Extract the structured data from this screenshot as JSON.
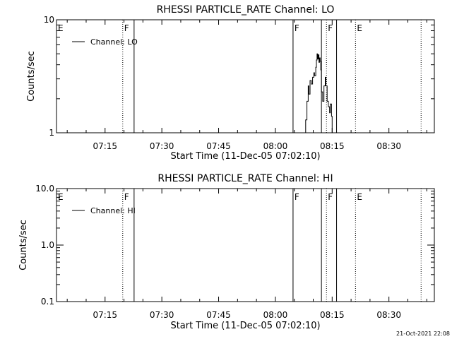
{
  "footer_timestamp": "21-Oct-2021 22:08",
  "chart_data": [
    {
      "type": "line",
      "title": "RHESSI PARTICLE_RATE Channel: LO",
      "xlabel": "Start Time (11-Dec-05 07:02:10)",
      "ylabel": "Counts/sec",
      "yscale": "log",
      "ylim": [
        1,
        10
      ],
      "xlim": [
        "07:02:10",
        "08:42:00"
      ],
      "x_ticks": [
        "07:15",
        "07:30",
        "07:45",
        "08:00",
        "08:15",
        "08:30"
      ],
      "y_ticks": [
        "1",
        "10"
      ],
      "legend": {
        "entries": [
          "Channel: LO"
        ],
        "placement": "top-left"
      },
      "grid": false,
      "markers": [
        {
          "label": "E",
          "time": "07:02:10",
          "style": "dotted"
        },
        {
          "label": "F",
          "time": "07:19:40",
          "style": "dotted"
        },
        {
          "label": "",
          "time": "07:22:40",
          "style": "solid"
        },
        {
          "label": "F",
          "time": "08:04:40",
          "style": "solid"
        },
        {
          "label": "",
          "time": "08:12:10",
          "style": "solid"
        },
        {
          "label": "F",
          "time": "08:13:30",
          "style": "dotted"
        },
        {
          "label": "",
          "time": "08:16:10",
          "style": "solid"
        },
        {
          "label": "E",
          "time": "08:21:10",
          "style": "dotted"
        },
        {
          "label": "",
          "time": "08:38:30",
          "style": "dotted"
        }
      ],
      "series": [
        {
          "name": "Channel: LO",
          "points": [
            [
              "08:07:40",
              1.0
            ],
            [
              "08:08:00",
              1.3
            ],
            [
              "08:08:20",
              1.9
            ],
            [
              "08:08:40",
              2.6
            ],
            [
              "08:08:50",
              2.2
            ],
            [
              "08:09:10",
              2.9
            ],
            [
              "08:09:30",
              2.7
            ],
            [
              "08:09:50",
              3.1
            ],
            [
              "08:10:10",
              3.4
            ],
            [
              "08:10:20",
              3.2
            ],
            [
              "08:10:40",
              3.8
            ],
            [
              "08:10:50",
              4.4
            ],
            [
              "08:11:00",
              5.0
            ],
            [
              "08:11:10",
              4.5
            ],
            [
              "08:11:20",
              4.9
            ],
            [
              "08:11:30",
              4.2
            ],
            [
              "08:11:40",
              4.6
            ],
            [
              "08:11:50",
              4.3
            ],
            [
              "08:12:00",
              3.6
            ],
            [
              "08:12:10",
              2.3
            ],
            [
              "08:12:30",
              1.9
            ],
            [
              "08:12:50",
              2.6
            ],
            [
              "08:13:10",
              3.1
            ],
            [
              "08:13:20",
              2.6
            ],
            [
              "08:13:40",
              1.9
            ],
            [
              "08:14:00",
              1.7
            ],
            [
              "08:14:20",
              1.5
            ],
            [
              "08:14:30",
              1.8
            ],
            [
              "08:14:50",
              1.4
            ],
            [
              "08:15:00",
              1.0
            ]
          ]
        }
      ]
    },
    {
      "type": "line",
      "title": "RHESSI PARTICLE_RATE Channel: HI",
      "xlabel": "Start Time (11-Dec-05 07:02:10)",
      "ylabel": "Counts/sec",
      "yscale": "log",
      "ylim": [
        0.1,
        10
      ],
      "xlim": [
        "07:02:10",
        "08:42:00"
      ],
      "x_ticks": [
        "07:15",
        "07:30",
        "07:45",
        "08:00",
        "08:15",
        "08:30"
      ],
      "y_ticks": [
        "0.1",
        "1.0",
        "10.0"
      ],
      "legend": {
        "entries": [
          "Channel: HI"
        ],
        "placement": "top-left"
      },
      "grid": false,
      "markers": [
        {
          "label": "E",
          "time": "07:02:10",
          "style": "dotted"
        },
        {
          "label": "F",
          "time": "07:19:40",
          "style": "dotted"
        },
        {
          "label": "",
          "time": "07:22:40",
          "style": "solid"
        },
        {
          "label": "F",
          "time": "08:04:40",
          "style": "solid"
        },
        {
          "label": "",
          "time": "08:12:10",
          "style": "solid"
        },
        {
          "label": "F",
          "time": "08:13:30",
          "style": "dotted"
        },
        {
          "label": "",
          "time": "08:16:10",
          "style": "solid"
        },
        {
          "label": "E",
          "time": "08:21:10",
          "style": "dotted"
        },
        {
          "label": "",
          "time": "08:38:30",
          "style": "dotted"
        }
      ],
      "series": [
        {
          "name": "Channel: HI",
          "points": []
        }
      ]
    }
  ]
}
